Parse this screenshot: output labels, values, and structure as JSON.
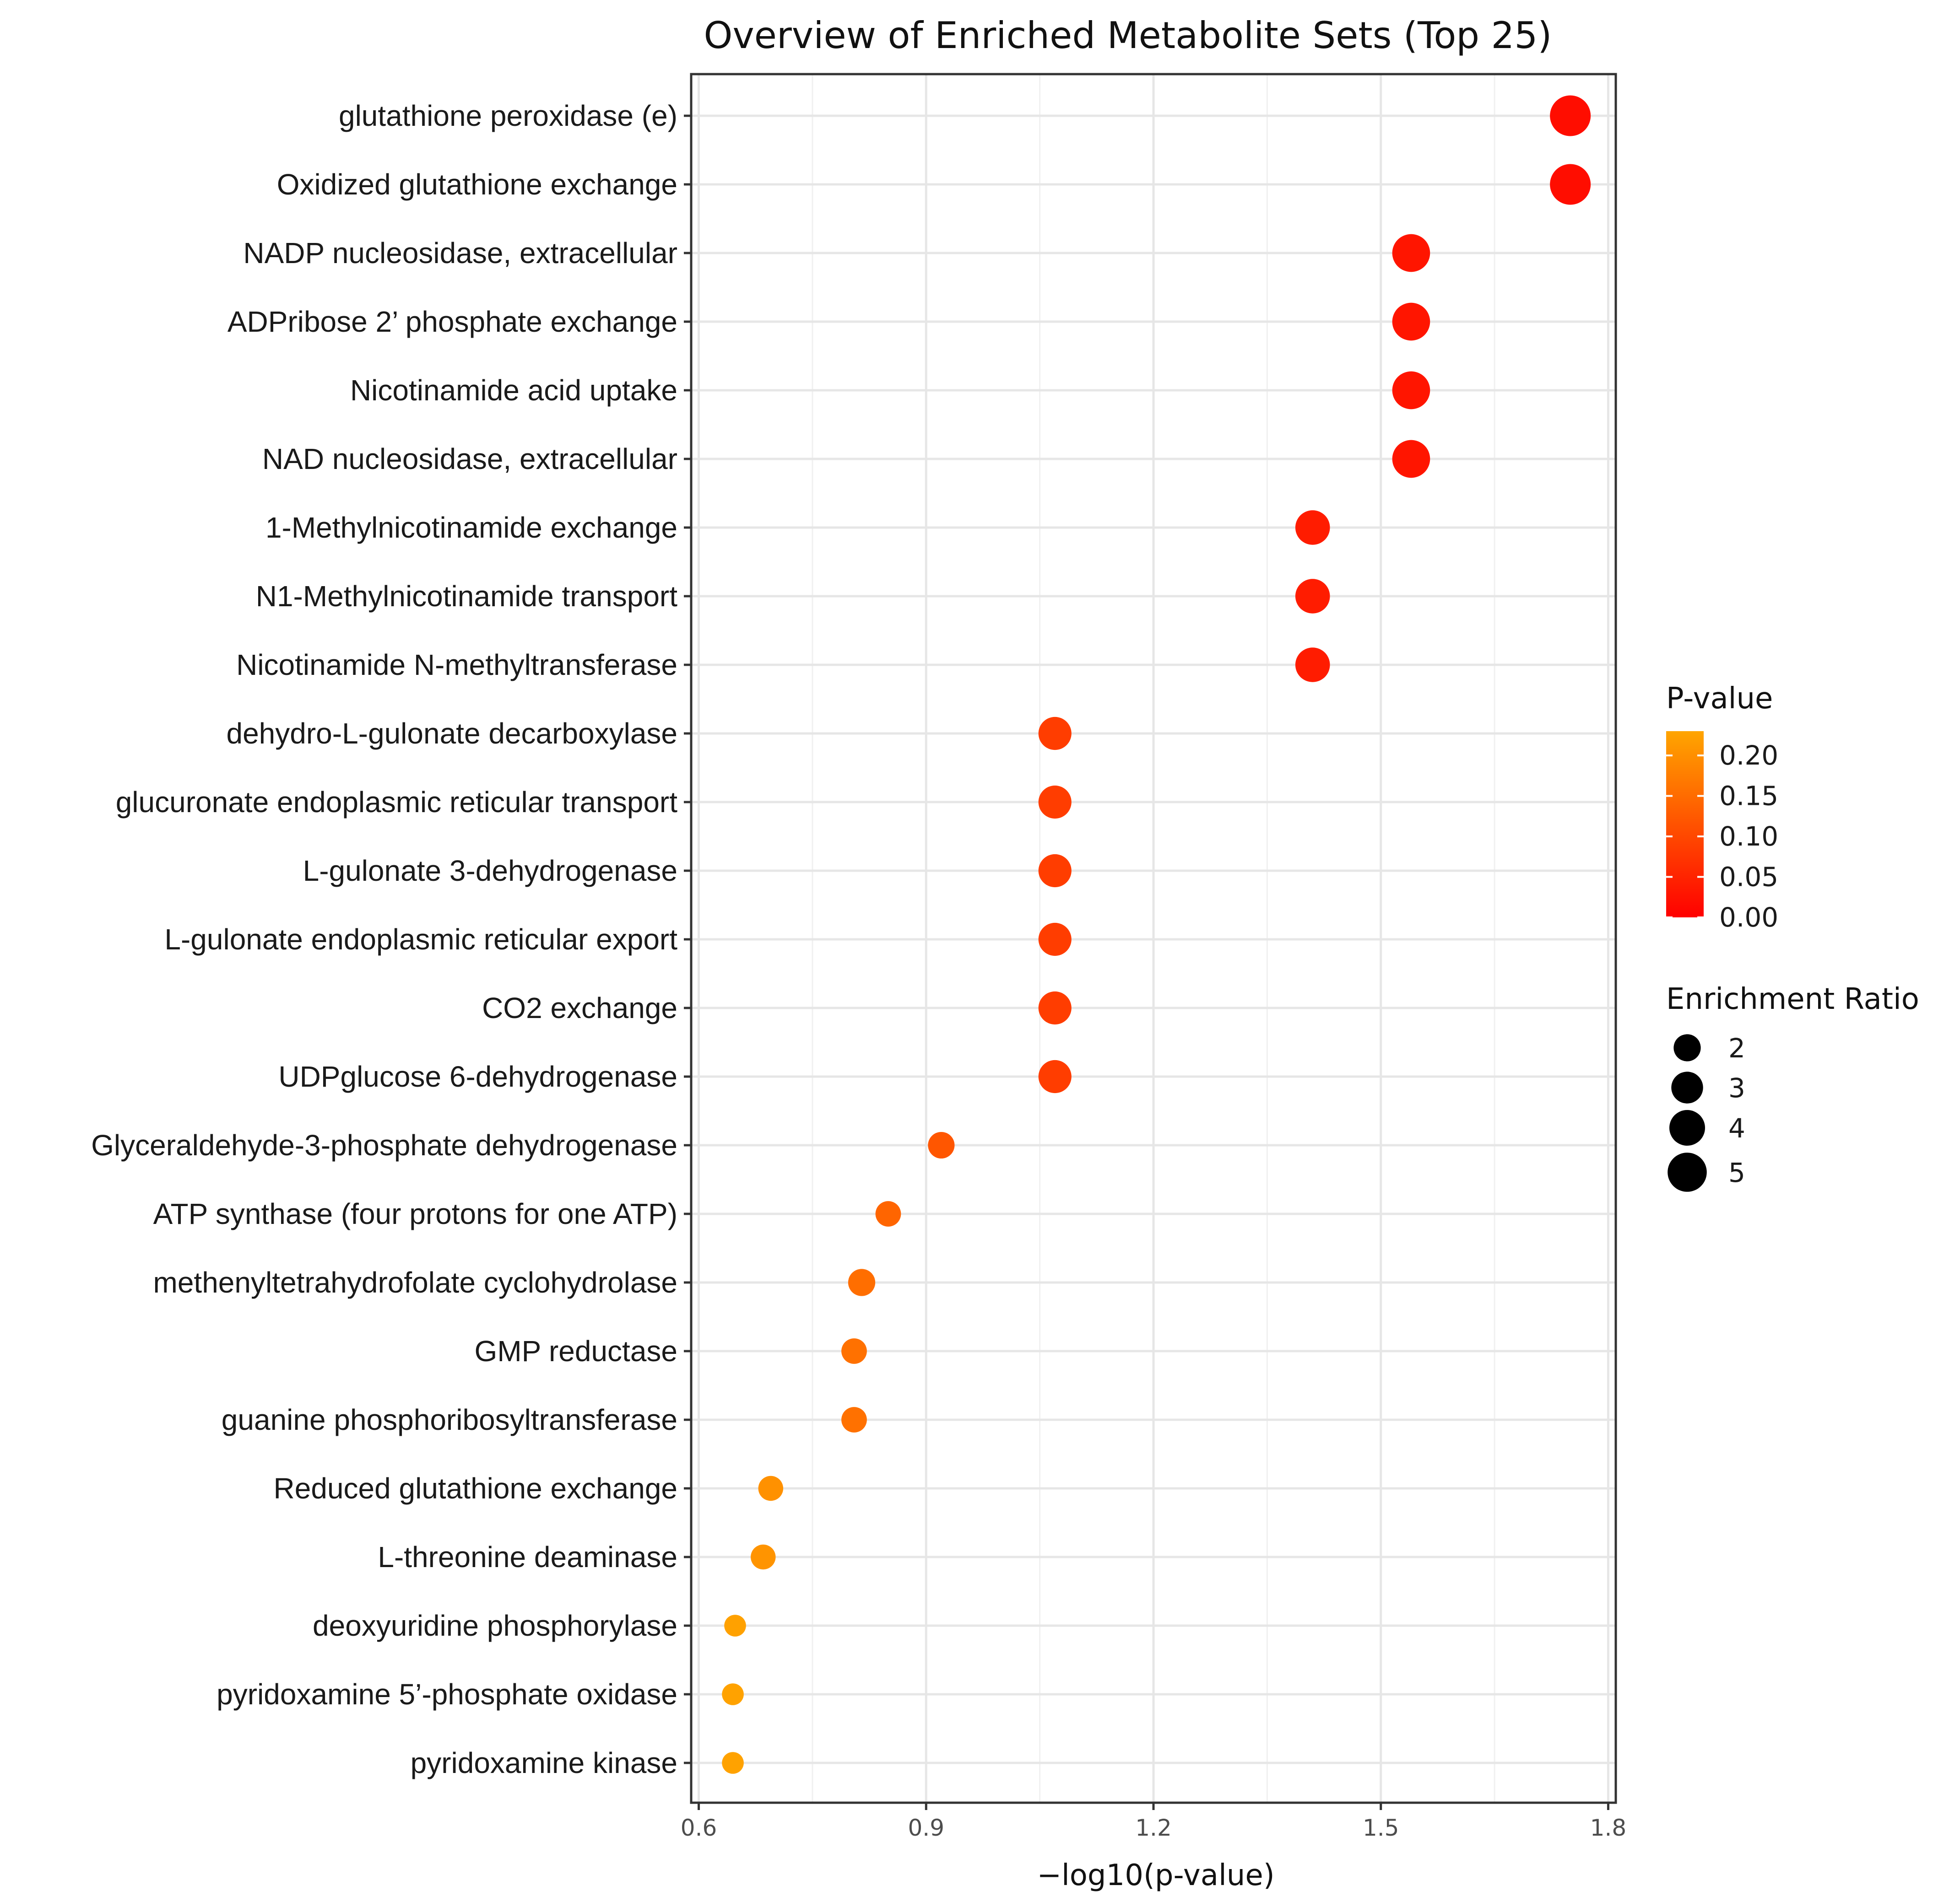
{
  "chart_data": {
    "type": "scatter",
    "title": "Overview of Enriched Metabolite Sets (Top 25)",
    "xlabel": "−log10(p-value)",
    "ylabel": "",
    "xlim": [
      0.59,
      1.81
    ],
    "xticks": [
      {
        "value": 0.6,
        "label": "0.6"
      },
      {
        "value": 0.9,
        "label": "0.9"
      },
      {
        "value": 1.2,
        "label": "1.2"
      },
      {
        "value": 1.5,
        "label": "1.5"
      },
      {
        "value": 1.8,
        "label": "1.8"
      }
    ],
    "grid": true,
    "points": [
      {
        "name": "glutathione peroxidase (e)",
        "x": 1.75,
        "ratio": 5.5,
        "p": 0.018
      },
      {
        "name": "Oxidized glutathione exchange",
        "x": 1.75,
        "ratio": 5.5,
        "p": 0.018
      },
      {
        "name": "NADP nucleosidase, extracellular",
        "x": 1.54,
        "ratio": 4.6,
        "p": 0.029
      },
      {
        "name": "ADPribose 2’ phosphate exchange",
        "x": 1.54,
        "ratio": 4.6,
        "p": 0.029
      },
      {
        "name": "Nicotinamide acid uptake",
        "x": 1.54,
        "ratio": 4.6,
        "p": 0.029
      },
      {
        "name": "NAD nucleosidase, extracellular",
        "x": 1.54,
        "ratio": 4.6,
        "p": 0.029
      },
      {
        "name": "1-Methylnicotinamide exchange",
        "x": 1.41,
        "ratio": 3.7,
        "p": 0.039
      },
      {
        "name": "N1-Methylnicotinamide transport",
        "x": 1.41,
        "ratio": 3.7,
        "p": 0.039
      },
      {
        "name": "Nicotinamide N-methyltransferase",
        "x": 1.41,
        "ratio": 3.7,
        "p": 0.039
      },
      {
        "name": "dehydro-L-gulonate decarboxylase",
        "x": 1.07,
        "ratio": 3.3,
        "p": 0.085
      },
      {
        "name": "glucuronate endoplasmic reticular transport",
        "x": 1.07,
        "ratio": 3.3,
        "p": 0.085
      },
      {
        "name": "L-gulonate 3-dehydrogenase",
        "x": 1.07,
        "ratio": 3.3,
        "p": 0.085
      },
      {
        "name": "L-gulonate endoplasmic reticular export",
        "x": 1.07,
        "ratio": 3.3,
        "p": 0.085
      },
      {
        "name": "CO2 exchange",
        "x": 1.07,
        "ratio": 3.3,
        "p": 0.085
      },
      {
        "name": "UDPglucose 6-dehydrogenase",
        "x": 1.07,
        "ratio": 3.3,
        "p": 0.085
      },
      {
        "name": "Glyceraldehyde-3-phosphate dehydrogenase",
        "x": 0.92,
        "ratio": 1.9,
        "p": 0.12
      },
      {
        "name": "ATP synthase (four protons for one ATP)",
        "x": 0.85,
        "ratio": 1.7,
        "p": 0.141
      },
      {
        "name": "methenyltetrahydrofolate cyclohydrolase",
        "x": 0.815,
        "ratio": 2.0,
        "p": 0.153
      },
      {
        "name": "GMP reductase",
        "x": 0.805,
        "ratio": 1.7,
        "p": 0.157
      },
      {
        "name": "guanine phosphoribosyltransferase",
        "x": 0.805,
        "ratio": 1.7,
        "p": 0.157
      },
      {
        "name": "Reduced glutathione exchange",
        "x": 0.695,
        "ratio": 1.6,
        "p": 0.202
      },
      {
        "name": "L-threonine deaminase",
        "x": 0.685,
        "ratio": 1.6,
        "p": 0.207
      },
      {
        "name": "deoxyuridine phosphorylase",
        "x": 0.648,
        "ratio": 1.1,
        "p": 0.225
      },
      {
        "name": "pyridoxamine 5’-phosphate oxidase",
        "x": 0.645,
        "ratio": 1.1,
        "p": 0.226
      },
      {
        "name": "pyridoxamine kinase",
        "x": 0.645,
        "ratio": 1.1,
        "p": 0.226
      }
    ],
    "color_legend": {
      "title": "P-value",
      "range": [
        0.0,
        0.23
      ],
      "low_color": "#ff0000",
      "high_color": "#ffa500",
      "ticks": [
        {
          "value": 0.2,
          "label": "0.20"
        },
        {
          "value": 0.15,
          "label": "0.15"
        },
        {
          "value": 0.1,
          "label": "0.10"
        },
        {
          "value": 0.05,
          "label": "0.05"
        },
        {
          "value": 0.0,
          "label": "0.00"
        }
      ]
    },
    "size_legend": {
      "title": "Enrichment Ratio",
      "entries": [
        {
          "value": 2,
          "label": "2"
        },
        {
          "value": 3,
          "label": "3"
        },
        {
          "value": 4,
          "label": "4"
        },
        {
          "value": 5,
          "label": "5"
        }
      ],
      "color": "#000000"
    },
    "legend_position": "right"
  }
}
